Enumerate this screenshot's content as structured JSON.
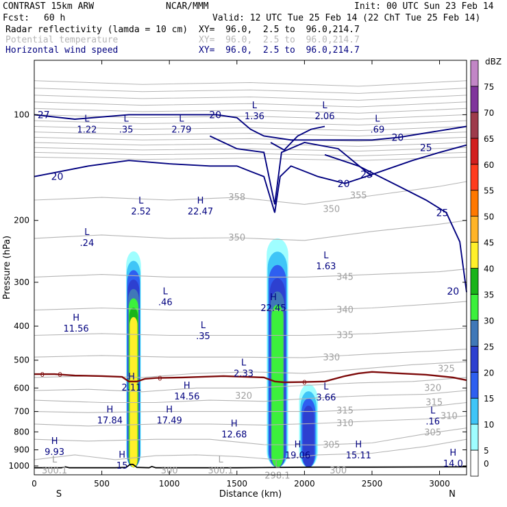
{
  "header": {
    "model": "CONTRAST 15km ARW",
    "org": "NCAR/MMM",
    "init": "Init: 00 UTC Sun 23 Feb 14",
    "fcst_label": "Fcst:",
    "fcst_value": "60 h",
    "valid": "Valid: 12 UTC Tue 25 Feb 14 (22 ChT Tue 25 Feb 14)",
    "fields": [
      {
        "name": "Radar reflectivity (lamda = 10 cm)",
        "xy": "XY=  96.0,  2.5 to  96.0,214.7",
        "color": "#000000"
      },
      {
        "name": "Potential temperature",
        "xy": "XY=  96.0,  2.5 to  96.0,214.7",
        "color": "#b4b4b4"
      },
      {
        "name": "Horizontal wind speed",
        "xy": "XY=  96.0,  2.5 to  96.0,214.7",
        "color": "#00007f"
      }
    ]
  },
  "chart_data": {
    "type": "cross-section",
    "xlabel": "Distance (km)",
    "ylabel": "Pressure (hPa)",
    "xlim": [
      0,
      3200
    ],
    "ylim": [
      1060,
      70
    ],
    "x_ticks": [
      0,
      500,
      1000,
      1500,
      2000,
      2500,
      3000
    ],
    "x_tick_labels": [
      "0",
      "500",
      "1000",
      "1500",
      "2000",
      "2500",
      "3000"
    ],
    "y_ticks": [
      100,
      200,
      300,
      400,
      500,
      600,
      700,
      800,
      900,
      1000
    ],
    "y_tick_labels": [
      "100",
      "200",
      "300",
      "400",
      "500",
      "600",
      "700",
      "800",
      "900",
      "1000"
    ],
    "left_end": "S",
    "right_end": "N",
    "colorbar": {
      "unit": "dBZ",
      "levels": [
        0,
        5,
        10,
        15,
        20,
        25,
        30,
        35,
        40,
        45,
        50,
        55,
        60,
        65,
        70,
        75
      ],
      "level_labels": [
        "0",
        "5",
        "10",
        "15",
        "20",
        "25",
        "30",
        "35",
        "40",
        "45",
        "50",
        "55",
        "60",
        "65",
        "70",
        "75"
      ],
      "colors": [
        "#ffffff",
        "#9ffeff",
        "#3fc5f7",
        "#2e5ff0",
        "#2d40d0",
        "#4078b8",
        "#3cf03c",
        "#19b419",
        "#fff02a",
        "#ffb428",
        "#ff7800",
        "#ff3c1e",
        "#d21e1e",
        "#9e3b4b",
        "#80349c",
        "#c286c6"
      ]
    },
    "reflectivity_cells": [
      {
        "x": [
          680,
          790
        ],
        "top_hpa": 245,
        "dbz_max": 40
      },
      {
        "x": [
          1720,
          1880
        ],
        "top_hpa": 225,
        "dbz_max": 30
      },
      {
        "x": [
          1960,
          2100
        ],
        "top_hpa": 585,
        "dbz_max": 20
      }
    ],
    "theta_contours": {
      "unit": "K",
      "color": "#b4b4b4",
      "labels": [
        {
          "text": "355",
          "x": 2400,
          "p": 170
        },
        {
          "text": "358",
          "x": 1500,
          "p": 172
        },
        {
          "text": "350",
          "x": 2200,
          "p": 186
        },
        {
          "text": "350",
          "x": 1500,
          "p": 224
        },
        {
          "text": "345",
          "x": 2300,
          "p": 290
        },
        {
          "text": "340",
          "x": 2300,
          "p": 360
        },
        {
          "text": "335",
          "x": 2300,
          "p": 425
        },
        {
          "text": "330",
          "x": 2200,
          "p": 492
        },
        {
          "text": "325",
          "x": 3050,
          "p": 530
        },
        {
          "text": "320",
          "x": 1550,
          "p": 632
        },
        {
          "text": "320",
          "x": 2950,
          "p": 600
        },
        {
          "text": "315",
          "x": 2300,
          "p": 697
        },
        {
          "text": "315",
          "x": 2960,
          "p": 660
        },
        {
          "text": "310",
          "x": 2300,
          "p": 757
        },
        {
          "text": "310",
          "x": 3070,
          "p": 722
        },
        {
          "text": "305",
          "x": 2200,
          "p": 872
        },
        {
          "text": "305",
          "x": 2950,
          "p": 805
        },
        {
          "text": "300",
          "x": 1000,
          "p": 1032
        },
        {
          "text": "300",
          "x": 2250,
          "p": 1032
        },
        {
          "text": "0",
          "x": 60,
          "p": 548
        },
        {
          "text": "0",
          "x": 190,
          "p": 548
        },
        {
          "text": "0",
          "x": 930,
          "p": 562
        },
        {
          "text": "0",
          "x": 2000,
          "p": 577
        }
      ]
    },
    "wind_speed_contours": {
      "unit": "m/s",
      "color": "#00007f",
      "labels": [
        {
          "text": "27",
          "x": 70,
          "p": 100
        },
        {
          "text": "20",
          "x": 1340,
          "p": 100
        },
        {
          "text": "20",
          "x": 2690,
          "p": 116
        },
        {
          "text": "25",
          "x": 2900,
          "p": 124
        },
        {
          "text": "25",
          "x": 2460,
          "p": 148
        },
        {
          "text": "20",
          "x": 2290,
          "p": 157
        },
        {
          "text": "20",
          "x": 170,
          "p": 150
        },
        {
          "text": "25",
          "x": 3020,
          "p": 190
        },
        {
          "text": "20",
          "x": 3100,
          "p": 318
        }
      ]
    },
    "pressure_extrema": [
      {
        "type": "L",
        "value": "1.22",
        "x": 390,
        "p": 107
      },
      {
        "type": "L",
        "value": ".35",
        "x": 680,
        "p": 107
      },
      {
        "type": "L",
        "value": "2.79",
        "x": 1090,
        "p": 107
      },
      {
        "type": "L",
        "value": "1.36",
        "x": 1630,
        "p": 98
      },
      {
        "type": "L",
        "value": "2.06",
        "x": 2150,
        "p": 98
      },
      {
        "type": "L",
        "value": ".69",
        "x": 2540,
        "p": 107
      },
      {
        "type": "L",
        "value": "2.52",
        "x": 790,
        "p": 183
      },
      {
        "type": "H",
        "value": "22.47",
        "x": 1230,
        "p": 183
      },
      {
        "type": "L",
        "value": ".24",
        "x": 390,
        "p": 225
      },
      {
        "type": "L",
        "value": "1.63",
        "x": 2160,
        "p": 262
      },
      {
        "type": "L",
        "value": ".46",
        "x": 970,
        "p": 332
      },
      {
        "type": "H",
        "value": "22.45",
        "x": 1770,
        "p": 345
      },
      {
        "type": "H",
        "value": "11.56",
        "x": 310,
        "p": 395
      },
      {
        "type": "L",
        "value": ".35",
        "x": 1250,
        "p": 415
      },
      {
        "type": "L",
        "value": "2.33",
        "x": 1550,
        "p": 530
      },
      {
        "type": "H",
        "value": "2.11",
        "x": 720,
        "p": 580
      },
      {
        "type": "H",
        "value": "14.56",
        "x": 1130,
        "p": 615
      },
      {
        "type": "L",
        "value": "3.66",
        "x": 2160,
        "p": 620
      },
      {
        "type": "H",
        "value": "17.84",
        "x": 560,
        "p": 720
      },
      {
        "type": "H",
        "value": "17.49",
        "x": 1000,
        "p": 720
      },
      {
        "type": "L",
        "value": ".16",
        "x": 2950,
        "p": 725
      },
      {
        "type": "H",
        "value": "12.68",
        "x": 1480,
        "p": 790
      },
      {
        "type": "H",
        "value": "9.93",
        "x": 150,
        "p": 885
      },
      {
        "type": "H",
        "value": "19.06",
        "x": 1950,
        "p": 905
      },
      {
        "type": "H",
        "value": "15.11",
        "x": 2400,
        "p": 905
      },
      {
        "type": "H",
        "value": "14.0",
        "x": 3100,
        "p": 955
      },
      {
        "type": "H",
        "value": "15",
        "x": 650,
        "p": 970
      },
      {
        "type": "L",
        "value": "300.1",
        "x": 150,
        "p": 1000
      },
      {
        "type": "L",
        "value": "300.1",
        "x": 1380,
        "p": 1000
      },
      {
        "type": "L",
        "value": "298.1",
        "x": 1800,
        "p": 1035
      }
    ]
  }
}
